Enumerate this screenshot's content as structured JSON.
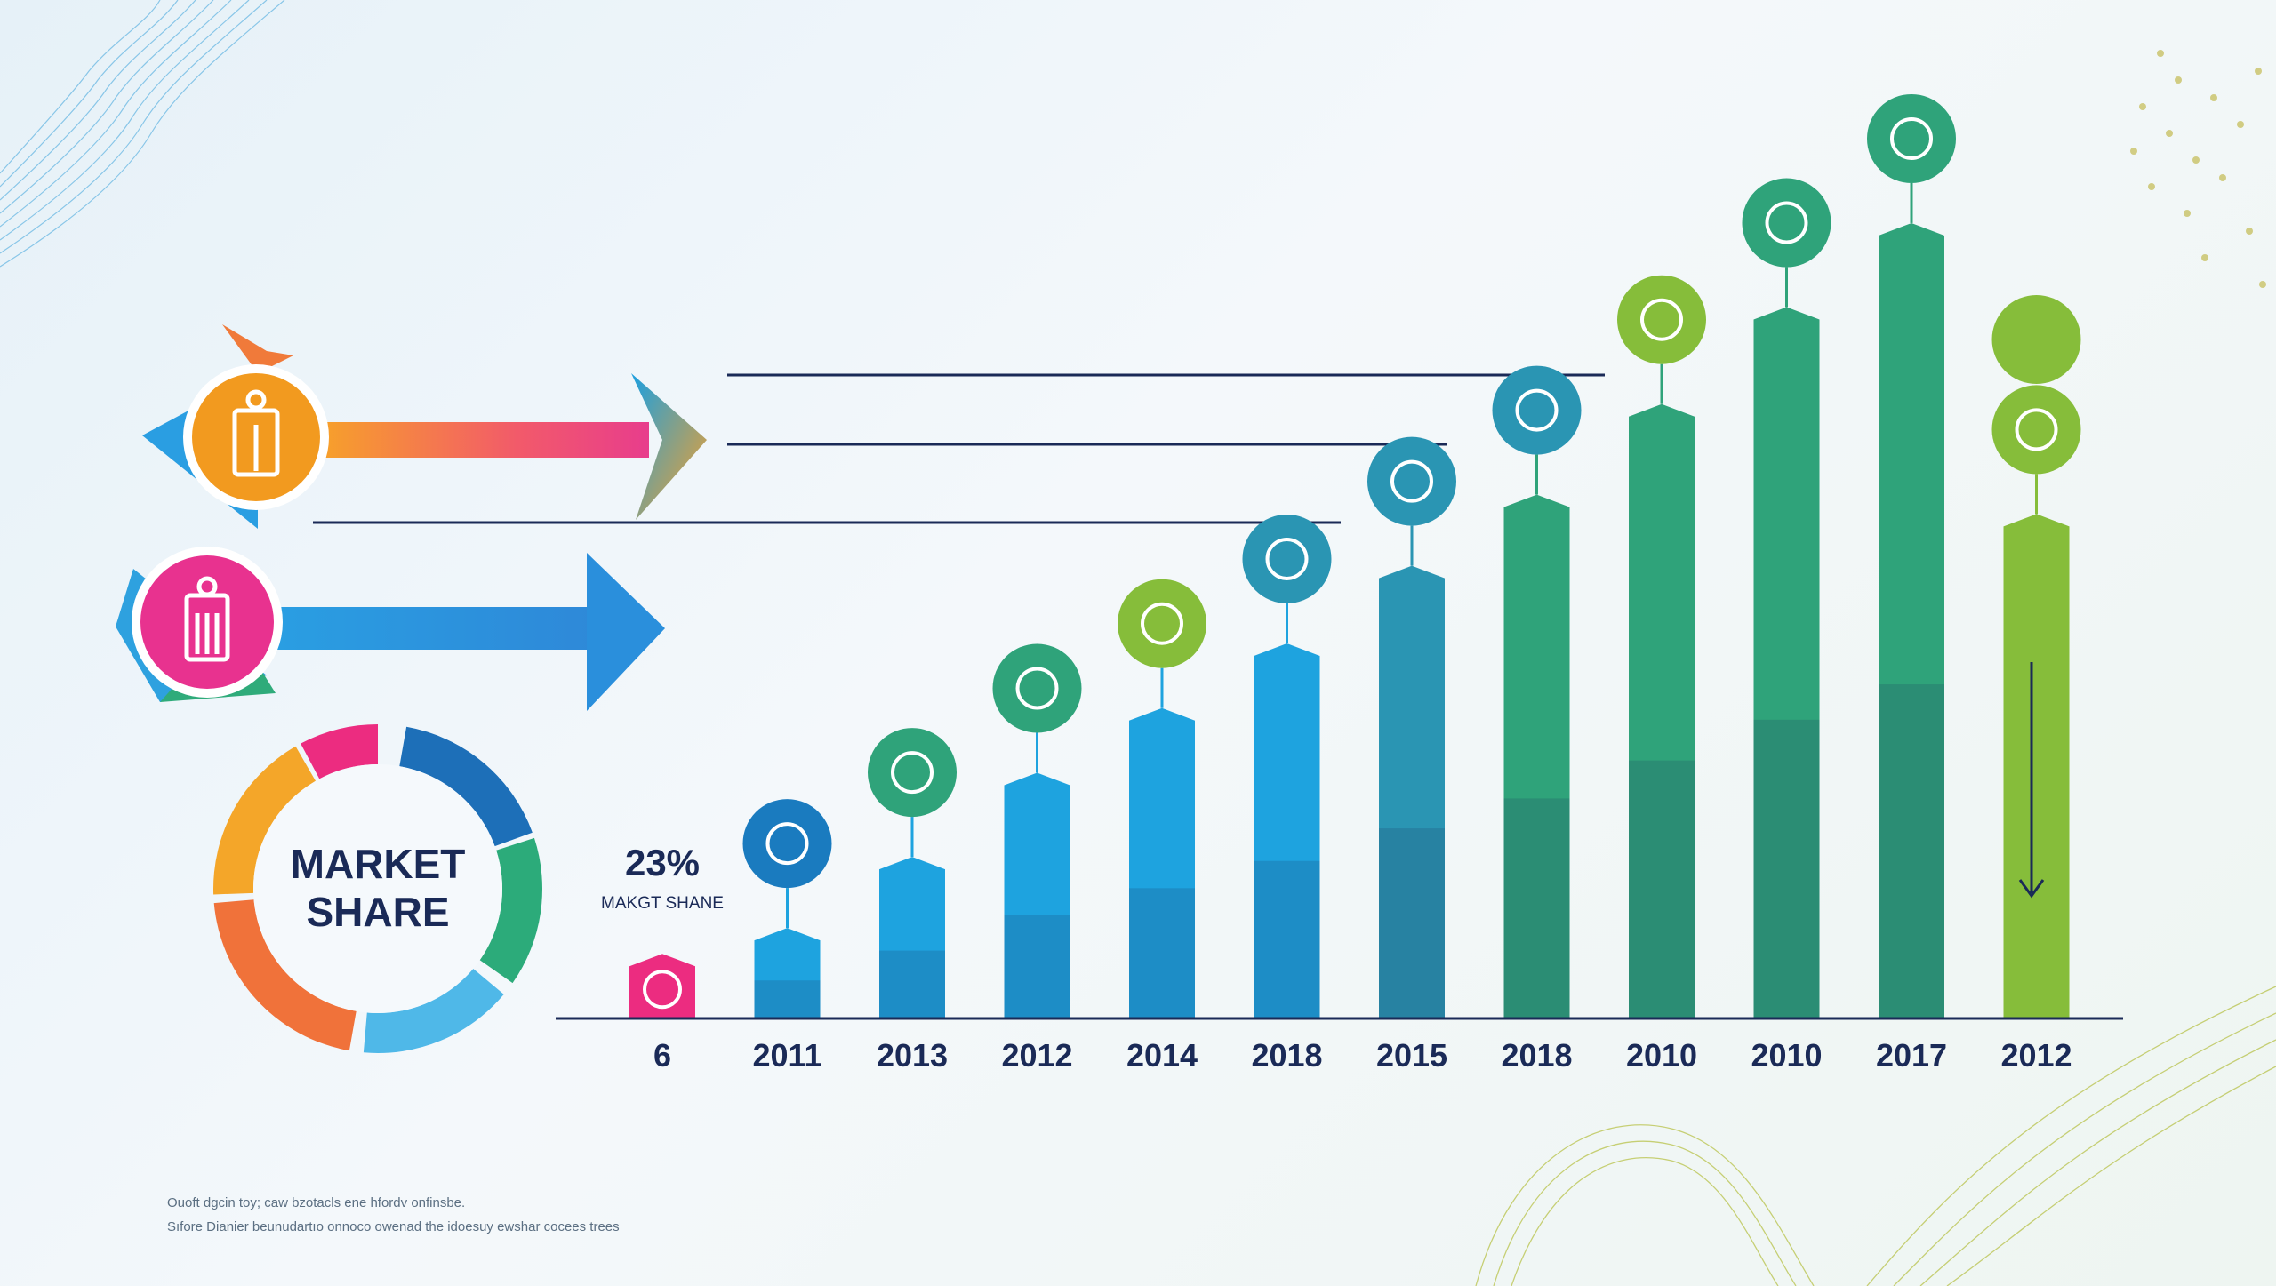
{
  "colors": {
    "bar_blue": "#1ea3df",
    "bar_teal": "#2a95b3",
    "bar_green": "#2fa37a",
    "bar_lime": "#86bd3a",
    "dark_navy": "#1a2a57",
    "donut": [
      "#1d6fb8",
      "#2cab7a",
      "#f4a629",
      "#f0723a",
      "#ec2c80",
      "#4fb8e8"
    ]
  },
  "donut": {
    "line1": "MARKET",
    "line2": "SHARE"
  },
  "callout": {
    "value": "23%",
    "label": "MAKGT SHANE"
  },
  "arrows": [
    {
      "name": "orange-arrow",
      "icon": "bag-icon"
    },
    {
      "name": "pink-arrow",
      "icon": "bag-icon"
    }
  ],
  "chart_data": {
    "type": "bar",
    "categories": [
      "6",
      "2011",
      "2013",
      "2012",
      "2014",
      "2018",
      "2015",
      "2018",
      "2010",
      "2010",
      "2017",
      "2012"
    ],
    "values": [
      10,
      14,
      25,
      38,
      48,
      58,
      70,
      81,
      95,
      110,
      123,
      78
    ],
    "ylim": [
      0,
      130
    ],
    "grid": false,
    "icons": [
      "heart-icon",
      "chart-icon",
      "shop-icon",
      "trend-icon",
      "person-icon",
      "store-icon",
      "dots-icon",
      "bulb-icon",
      "city-icon",
      "building-icon",
      "bag-icon",
      "search-icon"
    ]
  },
  "footnote": {
    "line1": "Ouoft dgcin toy; caw bzotacls ene hfordv onfinsbe.",
    "line2": "Sıfore Dianier beunudartıo onnoco owenad the idoesuy ewshar cocees trees"
  }
}
